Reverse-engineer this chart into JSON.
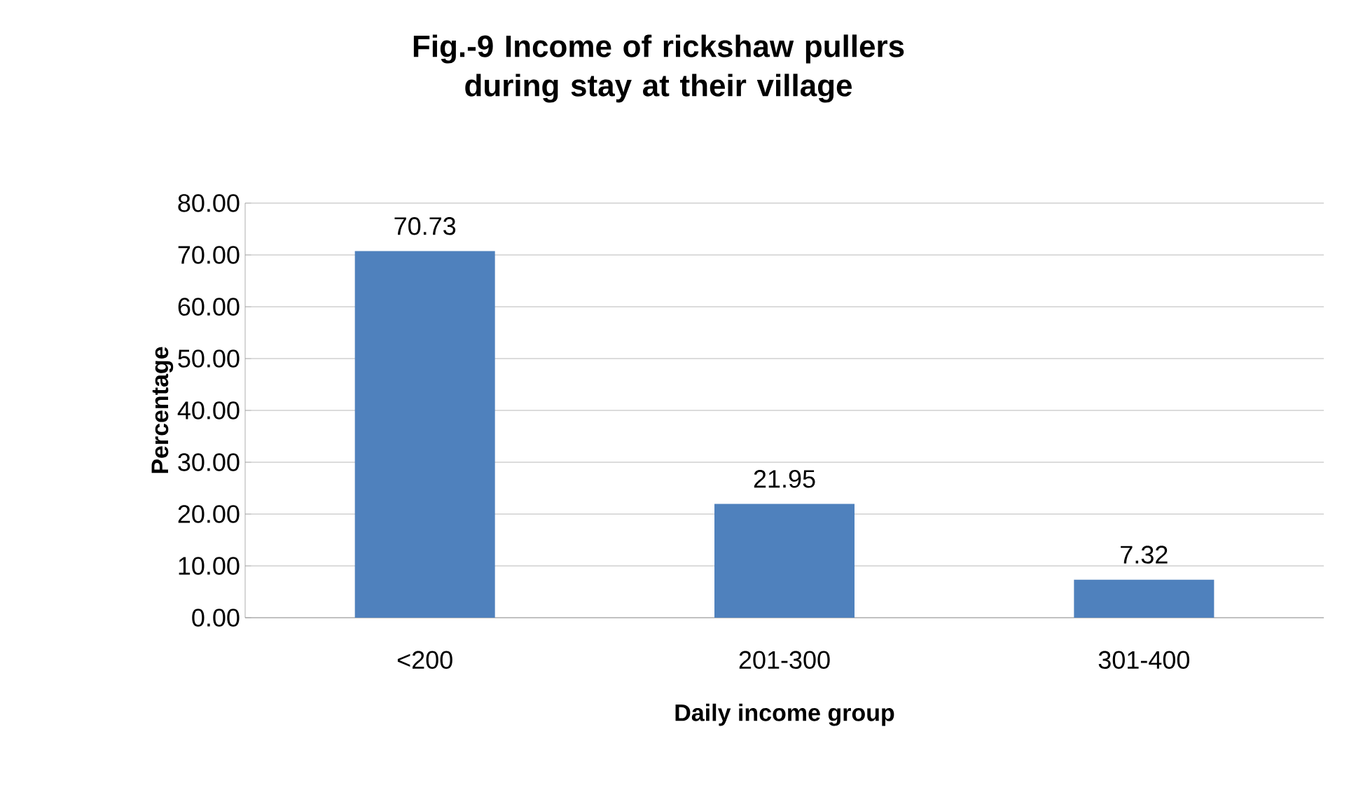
{
  "chart_data": {
    "type": "bar",
    "title": "Fig.-9 Income of rickshaw pullers during stay at their village",
    "xlabel": "Daily income group",
    "ylabel": "Percentage",
    "categories": [
      "<200",
      "201-300",
      "301-400"
    ],
    "values": [
      70.73,
      21.95,
      7.32
    ],
    "color": "#4f81bd",
    "value_labels": [
      "70.73",
      "21.95",
      "7.32"
    ],
    "ylim": [
      0,
      80
    ],
    "yticks": [
      {
        "value": 0,
        "label": "0.00"
      },
      {
        "value": 10,
        "label": "10.00"
      },
      {
        "value": 20,
        "label": "20.00"
      },
      {
        "value": 30,
        "label": "30.00"
      },
      {
        "value": 40,
        "label": "40.00"
      },
      {
        "value": 50,
        "label": "50.00"
      },
      {
        "value": 60,
        "label": "60.00"
      },
      {
        "value": 70,
        "label": "70.00"
      },
      {
        "value": 80,
        "label": "80.00"
      }
    ],
    "grid": "y"
  }
}
